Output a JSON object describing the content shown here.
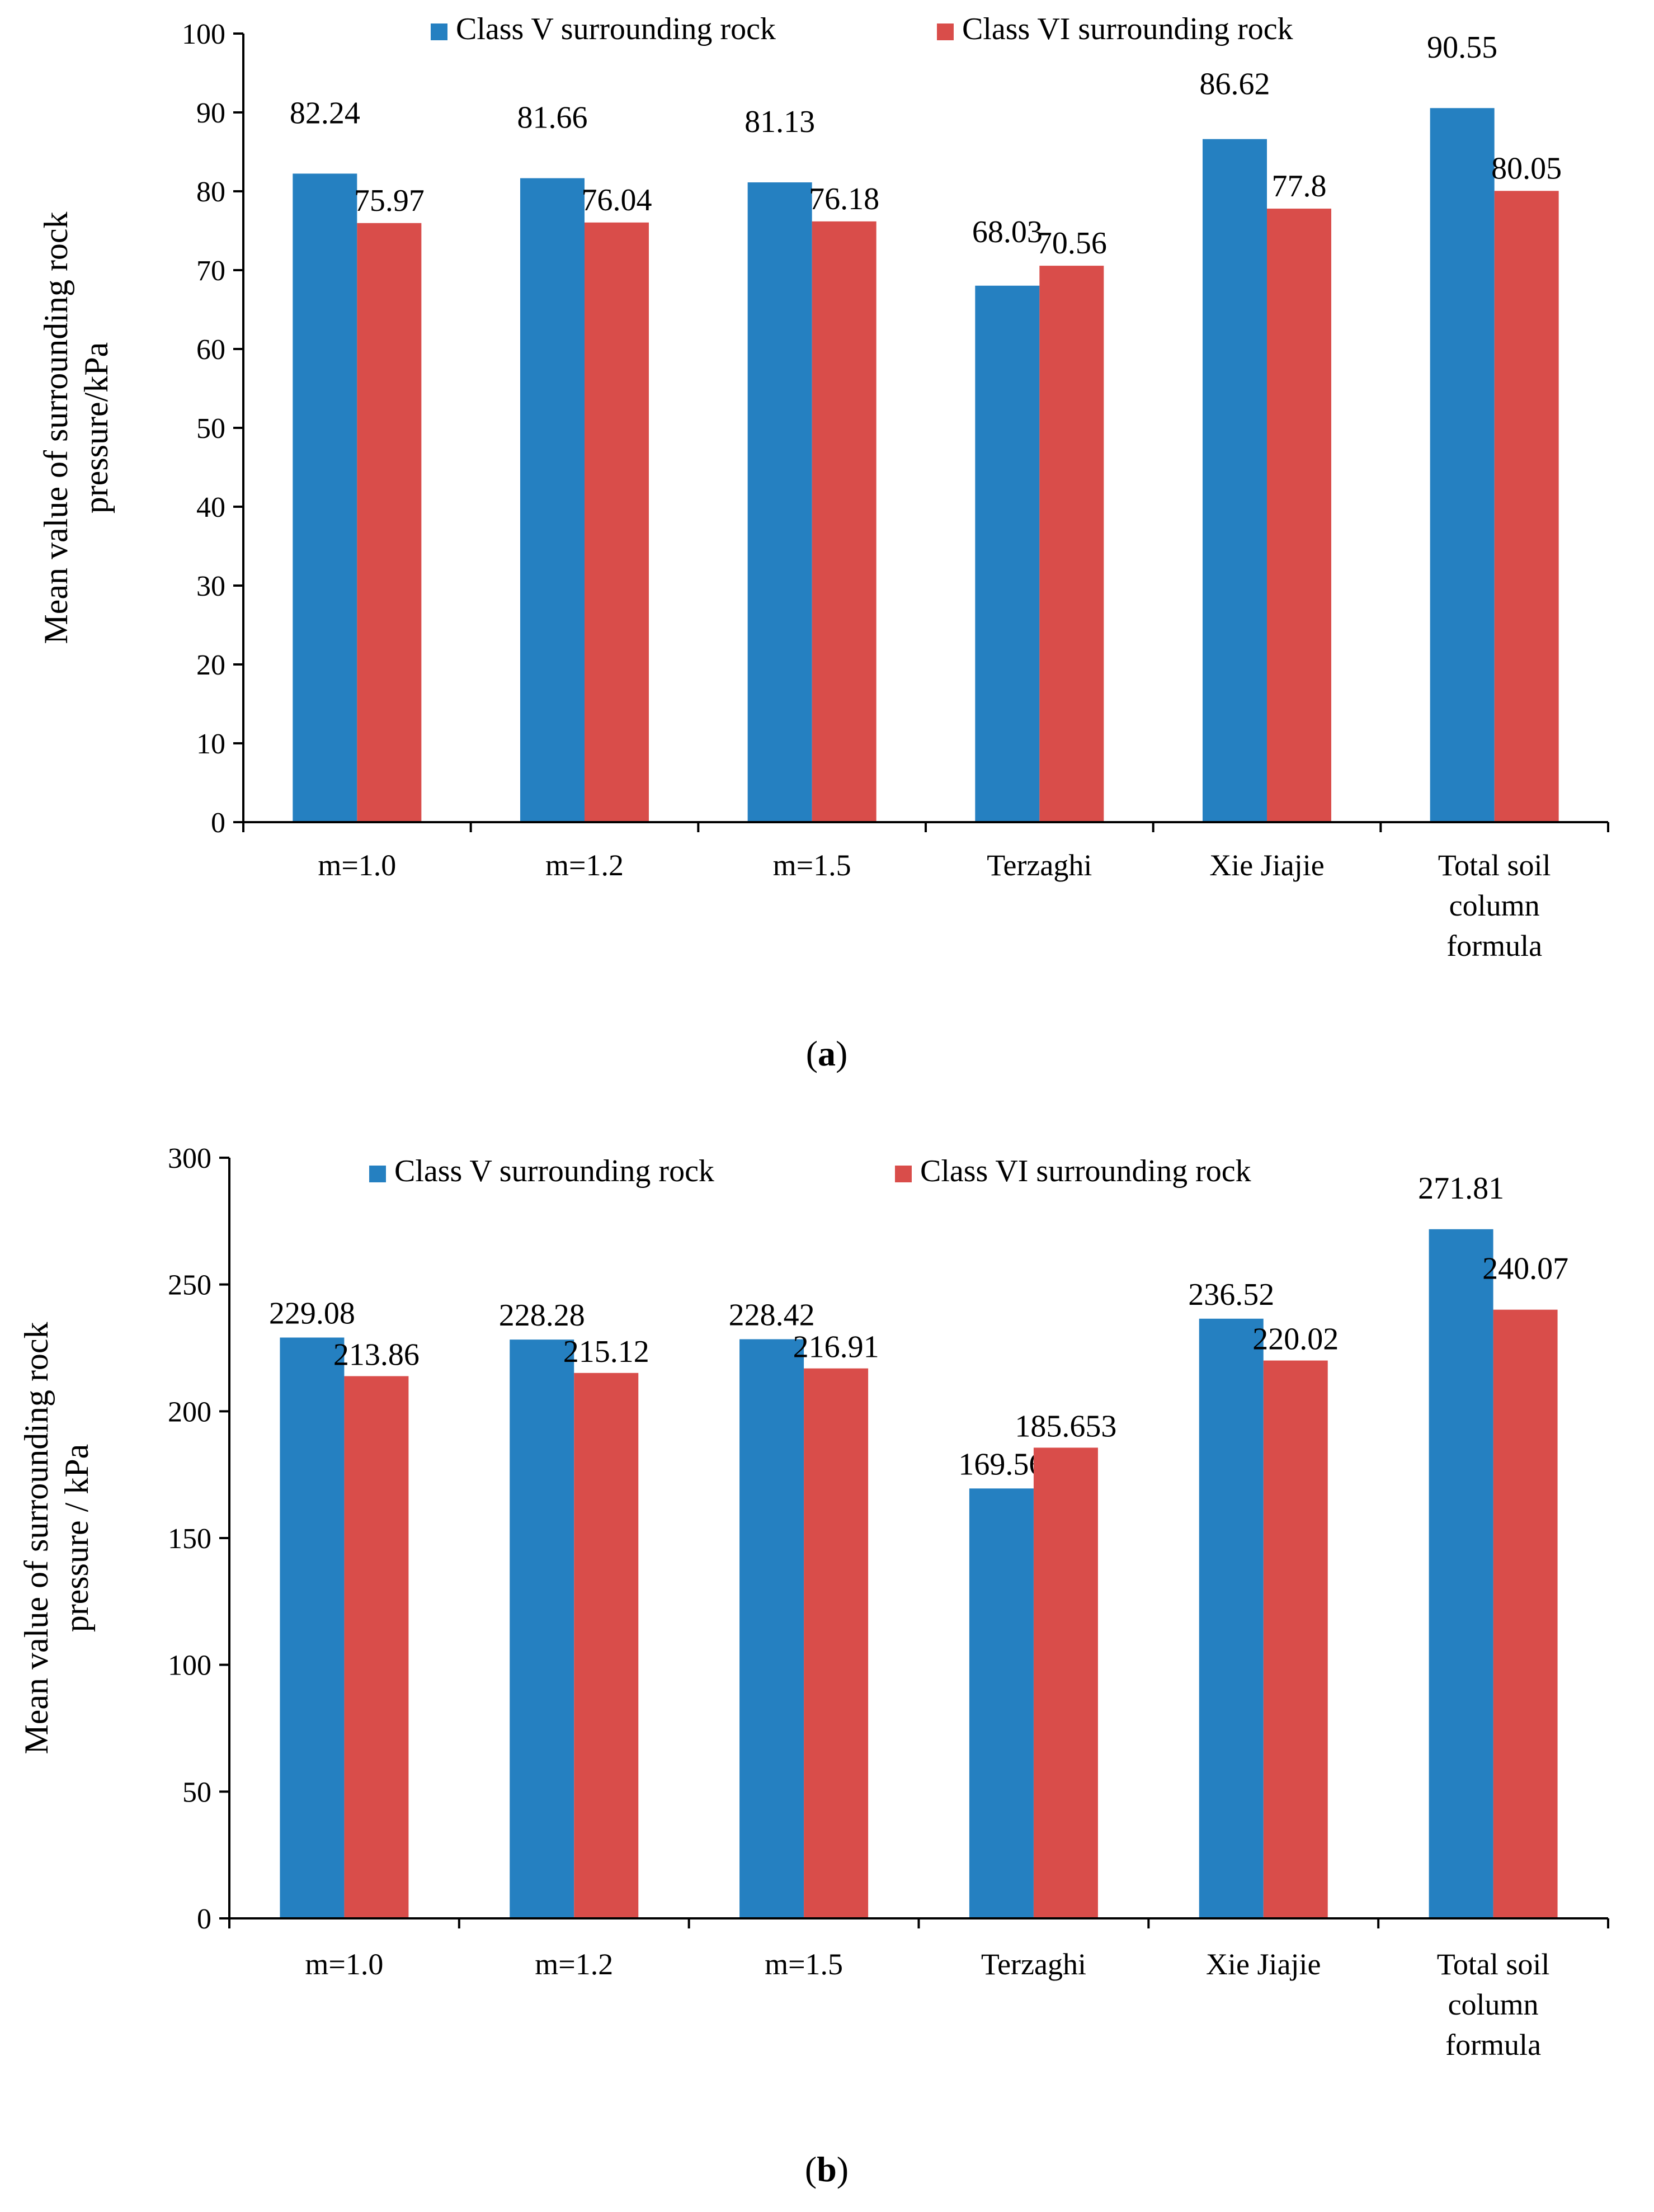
{
  "colors": {
    "series_a": "#2580c1",
    "series_b": "#d94d4a",
    "axis": "#000000"
  },
  "chart_data": [
    {
      "type": "bar",
      "panel_label": "a",
      "categories": [
        [
          "m=1.0"
        ],
        [
          "m=1.2"
        ],
        [
          "m=1.5"
        ],
        [
          "Terzaghi"
        ],
        [
          "Xie Jiajie"
        ],
        [
          "Total soil",
          "column",
          "formula"
        ]
      ],
      "series": [
        {
          "name": "Class V surrounding rock",
          "values": [
            82.24,
            81.66,
            81.13,
            68.03,
            86.62,
            90.55
          ],
          "labels": [
            "82.24",
            "81.66",
            "81.13",
            "68.03",
            "86.62",
            "90.55"
          ]
        },
        {
          "name": "Class VI surrounding rock",
          "values": [
            75.97,
            76.04,
            76.18,
            70.56,
            77.8,
            80.05
          ],
          "labels": [
            "75.97",
            "76.04",
            "76.18",
            "70.56",
            "77.8",
            "80.05"
          ]
        }
      ],
      "ylabel": [
        "Mean value of surrounding rock",
        "pressure/kPa"
      ],
      "ylim": [
        0,
        100
      ],
      "yticks": [
        0,
        10,
        20,
        30,
        40,
        50,
        60,
        70,
        80,
        90,
        100
      ],
      "legend": "top",
      "grid": false
    },
    {
      "type": "bar",
      "panel_label": "b",
      "categories": [
        [
          "m=1.0"
        ],
        [
          "m=1.2"
        ],
        [
          "m=1.5"
        ],
        [
          "Terzaghi"
        ],
        [
          "Xie Jiajie"
        ],
        [
          "Total soil",
          "column",
          "formula"
        ]
      ],
      "series": [
        {
          "name": "Class V surrounding rock",
          "values": [
            229.08,
            228.28,
            228.42,
            169.56,
            236.52,
            271.81
          ],
          "labels": [
            "229.08",
            "228.28",
            "228.42",
            "169.56",
            "236.52",
            "271.81"
          ]
        },
        {
          "name": "Class VI surrounding rock",
          "values": [
            213.86,
            215.12,
            216.91,
            185.653,
            220.02,
            240.07
          ],
          "labels": [
            "213.86",
            "215.12",
            "216.91",
            "185.653",
            "220.02",
            "240.07"
          ]
        }
      ],
      "ylabel": [
        "Mean value of surrounding rock",
        "pressure / kPa"
      ],
      "ylim": [
        0,
        300
      ],
      "yticks": [
        0,
        50,
        100,
        150,
        200,
        250,
        300
      ],
      "legend": "top",
      "grid": false
    }
  ]
}
